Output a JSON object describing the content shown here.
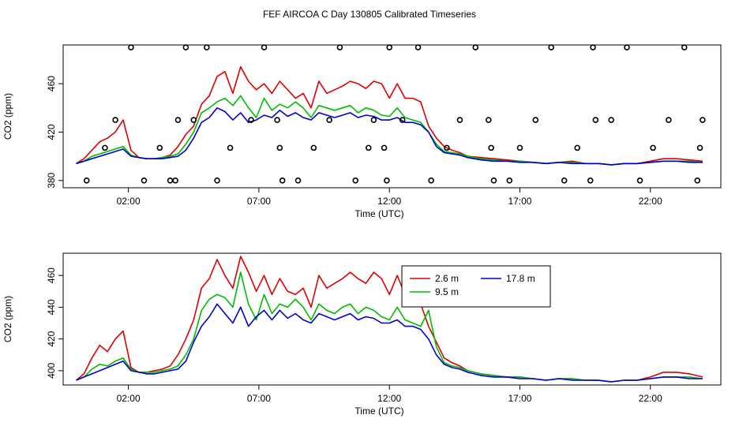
{
  "title": "FEF AIRCOA C  Day 130805  Calibrated Timeseries",
  "colors": {
    "s26": "#dd0000",
    "s95": "#00bb00",
    "s178": "#0000cc"
  },
  "chart_data": [
    {
      "type": "line",
      "name": "top",
      "xlabel": "Time (UTC)",
      "ylabel": "CO2 (ppm)",
      "xlim": [
        -0.5,
        24.7
      ],
      "ylim": [
        374,
        492
      ],
      "xticks": [
        2,
        7,
        12,
        17,
        22
      ],
      "xtick_labels": [
        "02:00",
        "07:00",
        "12:00",
        "17:00",
        "22:00"
      ],
      "yticks": [
        380,
        420,
        460
      ],
      "ytick_labels": [
        "380",
        "420",
        "460"
      ],
      "series": [
        {
          "name": "2.6 m",
          "color": "#dd0000",
          "x": [
            0,
            0.3,
            0.6,
            0.9,
            1.2,
            1.5,
            1.8,
            2.1,
            2.4,
            2.7,
            3,
            3.3,
            3.6,
            3.9,
            4.2,
            4.5,
            4.8,
            5.1,
            5.4,
            5.7,
            6,
            6.3,
            6.6,
            6.9,
            7.2,
            7.5,
            7.8,
            8.1,
            8.4,
            8.7,
            9,
            9.3,
            9.6,
            9.9,
            10.2,
            10.5,
            10.8,
            11.1,
            11.4,
            11.7,
            12,
            12.3,
            12.6,
            12.9,
            13.2,
            13.5,
            13.8,
            14.1,
            14.4,
            14.7,
            15,
            15.5,
            16,
            16.5,
            17,
            17.5,
            18,
            18.5,
            19,
            19.5,
            20,
            20.5,
            21,
            21.5,
            22,
            22.5,
            23,
            23.5,
            24
          ],
          "y": [
            394,
            398,
            405,
            412,
            415,
            420,
            430,
            405,
            399,
            398,
            398,
            399,
            401,
            408,
            418,
            425,
            443,
            450,
            466,
            470,
            452,
            474,
            462,
            455,
            460,
            452,
            462,
            455,
            448,
            452,
            440,
            462,
            452,
            455,
            458,
            462,
            460,
            456,
            462,
            460,
            448,
            460,
            448,
            448,
            445,
            425,
            415,
            408,
            405,
            403,
            400,
            399,
            398,
            397,
            396,
            395,
            394,
            395,
            396,
            394,
            394,
            393,
            394,
            394,
            396,
            398,
            398,
            397,
            396
          ]
        },
        {
          "name": "9.5 m",
          "color": "#00bb00",
          "x": [
            0,
            0.3,
            0.6,
            0.9,
            1.2,
            1.5,
            1.8,
            2.1,
            2.4,
            2.7,
            3,
            3.3,
            3.6,
            3.9,
            4.2,
            4.5,
            4.8,
            5.1,
            5.4,
            5.7,
            6,
            6.3,
            6.6,
            6.9,
            7.2,
            7.5,
            7.8,
            8.1,
            8.4,
            8.7,
            9,
            9.3,
            9.6,
            9.9,
            10.2,
            10.5,
            10.8,
            11.1,
            11.4,
            11.7,
            12,
            12.3,
            12.6,
            12.9,
            13.2,
            13.5,
            13.8,
            14.1,
            14.4,
            14.7,
            15,
            15.5,
            16,
            16.5,
            17,
            17.5,
            18,
            18.5,
            19,
            19.5,
            20,
            20.5,
            21,
            21.5,
            22,
            22.5,
            23,
            23.5,
            24
          ],
          "y": [
            394,
            396,
            400,
            402,
            404,
            406,
            408,
            401,
            399,
            398,
            398,
            399,
            400,
            402,
            410,
            420,
            436,
            440,
            445,
            448,
            442,
            450,
            440,
            432,
            448,
            438,
            443,
            440,
            445,
            440,
            432,
            442,
            440,
            438,
            440,
            442,
            436,
            440,
            438,
            434,
            433,
            440,
            432,
            430,
            428,
            420,
            410,
            404,
            403,
            402,
            400,
            398,
            397,
            396,
            396,
            395,
            394,
            395,
            395,
            394,
            394,
            393,
            394,
            394,
            395,
            396,
            396,
            396,
            395
          ]
        },
        {
          "name": "17.8 m",
          "color": "#0000cc",
          "x": [
            0,
            0.3,
            0.6,
            0.9,
            1.2,
            1.5,
            1.8,
            2.1,
            2.4,
            2.7,
            3,
            3.3,
            3.6,
            3.9,
            4.2,
            4.5,
            4.8,
            5.1,
            5.4,
            5.7,
            6,
            6.3,
            6.6,
            6.9,
            7.2,
            7.5,
            7.8,
            8.1,
            8.4,
            8.7,
            9,
            9.3,
            9.6,
            9.9,
            10.2,
            10.5,
            10.8,
            11.1,
            11.4,
            11.7,
            12,
            12.3,
            12.6,
            12.9,
            13.2,
            13.5,
            13.8,
            14.1,
            14.4,
            14.7,
            15,
            15.5,
            16,
            16.5,
            17,
            17.5,
            18,
            18.5,
            19,
            19.5,
            20,
            20.5,
            21,
            21.5,
            22,
            22.5,
            23,
            23.5,
            24
          ],
          "y": [
            394,
            396,
            398,
            400,
            402,
            404,
            406,
            400,
            399,
            398,
            398,
            398,
            399,
            400,
            405,
            415,
            428,
            432,
            440,
            437,
            430,
            436,
            428,
            430,
            434,
            432,
            438,
            433,
            436,
            432,
            430,
            436,
            434,
            432,
            434,
            436,
            432,
            434,
            433,
            430,
            430,
            432,
            428,
            428,
            426,
            420,
            408,
            403,
            402,
            401,
            399,
            397,
            396,
            396,
            395,
            395,
            394,
            395,
            394,
            394,
            394,
            393,
            394,
            394,
            395,
            396,
            396,
            395,
            395
          ]
        }
      ],
      "markers": {
        "shape": "open circle",
        "x": [
          0.4,
          1.1,
          1.5,
          2.1,
          2.6,
          3.2,
          3.6,
          3.8,
          3.9,
          4.2,
          4.5,
          5.0,
          5.4,
          5.9,
          6.7,
          7.2,
          7.7,
          7.8,
          7.9,
          8.5,
          9.1,
          9.7,
          10.1,
          10.7,
          11.2,
          11.4,
          11.8,
          11.9,
          12.0,
          12.5,
          13.1,
          13.6,
          14.2,
          14.7,
          15.3,
          15.8,
          15.9,
          16.0,
          16.6,
          17.0,
          17.6,
          18.2,
          18.7,
          19.2,
          19.7,
          19.8,
          19.9,
          20.5,
          21.1,
          21.6,
          22.1,
          22.7,
          23.3,
          23.8,
          23.9,
          24.0
        ],
        "y": [
          380,
          407,
          430,
          490,
          380,
          407,
          380,
          380,
          430,
          490,
          430,
          490,
          380,
          407,
          430,
          490,
          430,
          407,
          380,
          380,
          407,
          430,
          490,
          380,
          407,
          430,
          407,
          380,
          490,
          430,
          490,
          380,
          407,
          430,
          490,
          430,
          407,
          380,
          380,
          407,
          430,
          490,
          380,
          407,
          380,
          490,
          430,
          430,
          490,
          380,
          407,
          430,
          490,
          380,
          407,
          430
        ]
      }
    },
    {
      "type": "line",
      "name": "bottom",
      "xlabel": "Time (UTC)",
      "ylabel": "CO2 (ppm)",
      "xlim": [
        -0.5,
        24.7
      ],
      "ylim": [
        391,
        474
      ],
      "xticks": [
        2,
        7,
        12,
        17,
        22
      ],
      "xtick_labels": [
        "02:00",
        "07:00",
        "12:00",
        "17:00",
        "22:00"
      ],
      "yticks": [
        400,
        420,
        440,
        460
      ],
      "ytick_labels": [
        "400",
        "420",
        "440",
        "460"
      ],
      "legend": {
        "placement": "top-right",
        "labels": [
          "2.6 m",
          "9.5 m",
          "17.8 m"
        ]
      },
      "series": [
        {
          "name": "2.6 m",
          "color": "#dd0000",
          "x": [
            0,
            0.3,
            0.6,
            0.9,
            1.2,
            1.5,
            1.8,
            2.1,
            2.4,
            2.7,
            3,
            3.3,
            3.6,
            3.9,
            4.2,
            4.5,
            4.8,
            5.1,
            5.4,
            5.7,
            6,
            6.3,
            6.6,
            6.9,
            7.2,
            7.5,
            7.8,
            8.1,
            8.4,
            8.7,
            9,
            9.3,
            9.6,
            9.9,
            10.2,
            10.5,
            10.8,
            11.1,
            11.4,
            11.7,
            12,
            12.3,
            12.6,
            12.9,
            13.2,
            13.5,
            13.8,
            14.1,
            14.4,
            14.7,
            15,
            15.5,
            16,
            16.5,
            17,
            17.5,
            18,
            18.5,
            19,
            19.5,
            20,
            20.5,
            21,
            21.5,
            22,
            22.5,
            23,
            23.5,
            24
          ],
          "y": [
            394,
            398,
            408,
            416,
            412,
            420,
            425,
            402,
            399,
            399,
            400,
            401,
            403,
            410,
            420,
            432,
            452,
            458,
            470,
            460,
            452,
            472,
            462,
            450,
            460,
            448,
            458,
            450,
            448,
            452,
            440,
            460,
            452,
            455,
            458,
            462,
            458,
            455,
            462,
            458,
            448,
            460,
            448,
            445,
            442,
            428,
            418,
            408,
            405,
            403,
            400,
            398,
            397,
            396,
            396,
            395,
            394,
            395,
            395,
            394,
            394,
            393,
            394,
            394,
            396,
            399,
            399,
            398,
            396
          ]
        },
        {
          "name": "9.5 m",
          "color": "#00bb00",
          "x": [
            0,
            0.3,
            0.6,
            0.9,
            1.2,
            1.5,
            1.8,
            2.1,
            2.4,
            2.7,
            3,
            3.3,
            3.6,
            3.9,
            4.2,
            4.5,
            4.8,
            5.1,
            5.4,
            5.7,
            6,
            6.3,
            6.6,
            6.9,
            7.2,
            7.5,
            7.8,
            8.1,
            8.4,
            8.7,
            9,
            9.3,
            9.6,
            9.9,
            10.2,
            10.5,
            10.8,
            11.1,
            11.4,
            11.7,
            12,
            12.3,
            12.6,
            12.9,
            13.2,
            13.5,
            13.8,
            14.1,
            14.4,
            14.7,
            15,
            15.5,
            16,
            16.5,
            17,
            17.5,
            18,
            18.5,
            19,
            19.5,
            20,
            20.5,
            21,
            21.5,
            22,
            22.5,
            23,
            23.5,
            24
          ],
          "y": [
            394,
            396,
            401,
            404,
            403,
            406,
            408,
            401,
            399,
            399,
            399,
            400,
            401,
            403,
            410,
            420,
            438,
            445,
            448,
            446,
            440,
            462,
            442,
            432,
            448,
            436,
            442,
            440,
            445,
            440,
            432,
            442,
            438,
            436,
            440,
            442,
            436,
            440,
            438,
            434,
            432,
            440,
            432,
            430,
            428,
            438,
            415,
            405,
            403,
            402,
            400,
            398,
            397,
            396,
            396,
            395,
            394,
            395,
            395,
            394,
            394,
            393,
            394,
            394,
            395,
            396,
            396,
            396,
            395
          ]
        },
        {
          "name": "17.8 m",
          "color": "#0000cc",
          "x": [
            0,
            0.3,
            0.6,
            0.9,
            1.2,
            1.5,
            1.8,
            2.1,
            2.4,
            2.7,
            3,
            3.3,
            3.6,
            3.9,
            4.2,
            4.5,
            4.8,
            5.1,
            5.4,
            5.7,
            6,
            6.3,
            6.6,
            6.9,
            7.2,
            7.5,
            7.8,
            8.1,
            8.4,
            8.7,
            9,
            9.3,
            9.6,
            9.9,
            10.2,
            10.5,
            10.8,
            11.1,
            11.4,
            11.7,
            12,
            12.3,
            12.6,
            12.9,
            13.2,
            13.5,
            13.8,
            14.1,
            14.4,
            14.7,
            15,
            15.5,
            16,
            16.5,
            17,
            17.5,
            18,
            18.5,
            19,
            19.5,
            20,
            20.5,
            21,
            21.5,
            22,
            22.5,
            23,
            23.5,
            24
          ],
          "y": [
            394,
            396,
            398,
            400,
            402,
            404,
            406,
            400,
            399,
            398,
            398,
            399,
            400,
            401,
            406,
            418,
            428,
            434,
            442,
            436,
            430,
            440,
            428,
            434,
            438,
            432,
            438,
            433,
            436,
            432,
            430,
            436,
            434,
            432,
            434,
            436,
            432,
            434,
            433,
            430,
            430,
            432,
            428,
            428,
            426,
            420,
            410,
            404,
            402,
            401,
            399,
            397,
            396,
            396,
            395,
            395,
            394,
            395,
            394,
            394,
            394,
            393,
            394,
            394,
            395,
            396,
            396,
            395,
            395
          ]
        }
      ]
    }
  ]
}
